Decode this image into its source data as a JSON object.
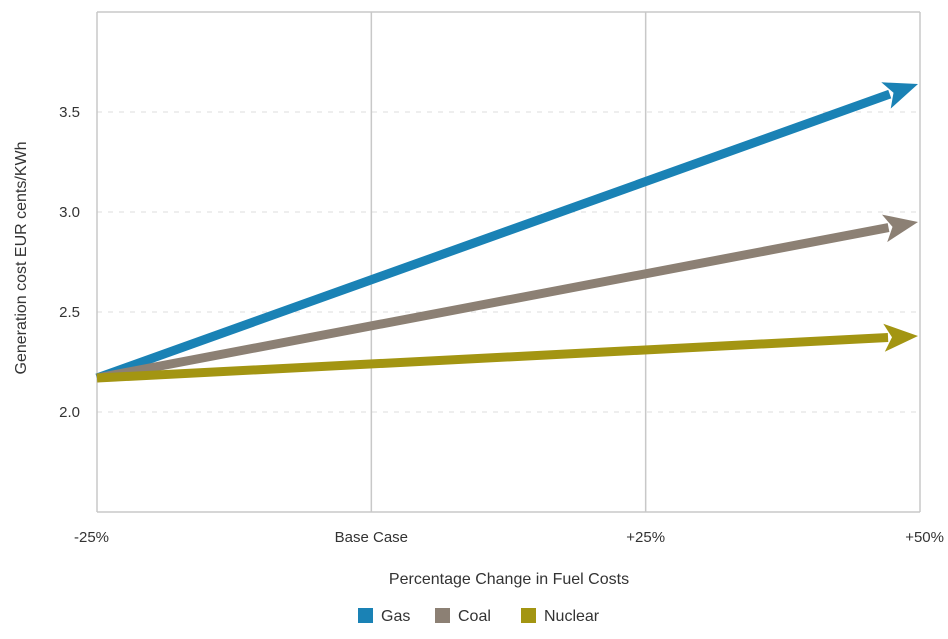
{
  "chart_data": {
    "type": "line",
    "title": "",
    "xlabel": "Percentage Change in Fuel Costs",
    "ylabel": "Generation cost EUR cents/KWh",
    "categories": [
      "-25%",
      "Base Case",
      "+25%",
      "+50%"
    ],
    "x_values": [
      -25,
      0,
      25,
      50
    ],
    "yticks": [
      2.0,
      2.5,
      3.0,
      3.5
    ],
    "ylim": [
      1.5,
      4.0
    ],
    "grid": "vertical solid lines at x ticks, dashed horizontal lines at y ticks",
    "legend_position": "bottom",
    "series": [
      {
        "name": "Gas",
        "color": "#1a82b5",
        "x": [
          -25,
          50
        ],
        "y": [
          2.17,
          3.64
        ]
      },
      {
        "name": "Coal",
        "color": "#8c8074",
        "x": [
          -25,
          50
        ],
        "y": [
          2.17,
          2.95
        ]
      },
      {
        "name": "Nuclear",
        "color": "#a39512",
        "x": [
          -25,
          50
        ],
        "y": [
          2.17,
          2.38
        ]
      }
    ]
  }
}
